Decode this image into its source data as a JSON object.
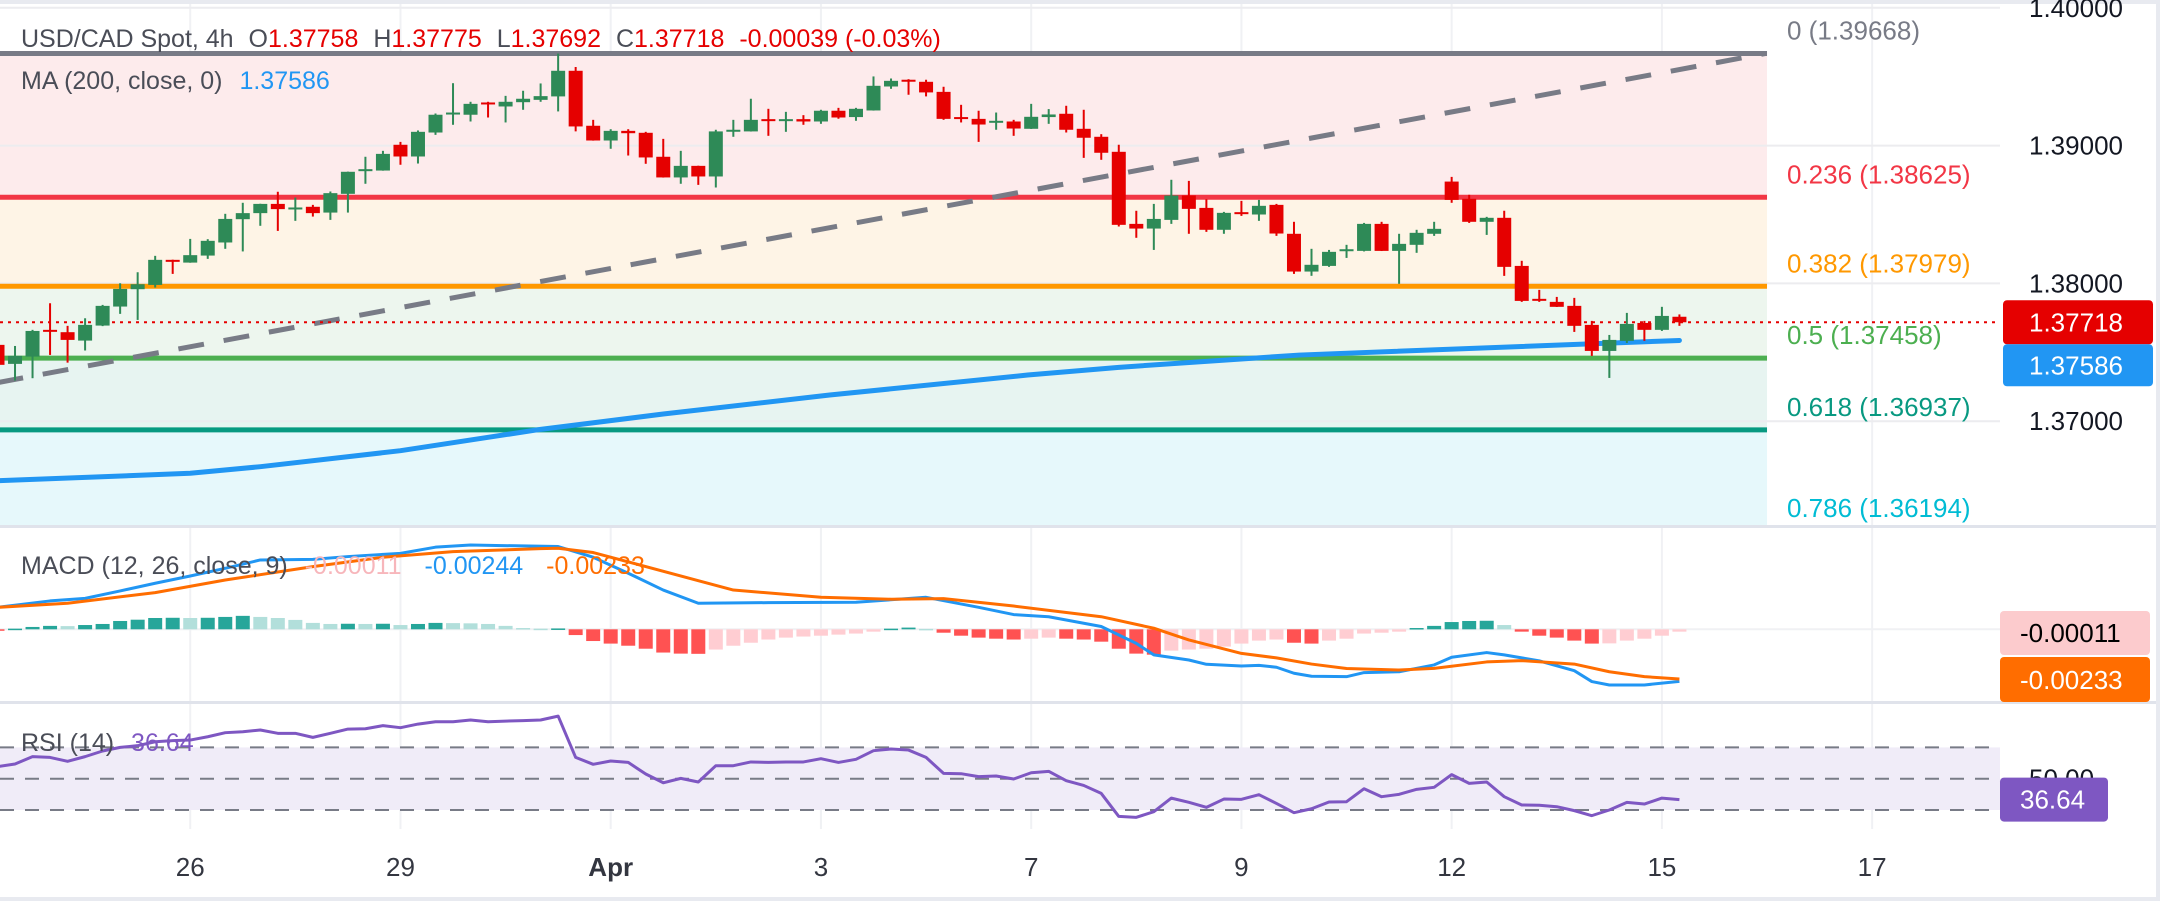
{
  "header": {
    "symbol": "USD/CAD Spot, 4h",
    "open_label": "O",
    "open": "1.37758",
    "high_label": "H",
    "high": "1.37775",
    "low_label": "L",
    "low": "1.37692",
    "close_label": "C",
    "close": "1.37718",
    "change": "-0.00039 (-0.03%)",
    "value_color": "#e50000"
  },
  "ma_legend": {
    "label": "MA (200, close, 0)",
    "value": "1.37586",
    "color": "#2196f3"
  },
  "macd_legend": {
    "label": "MACD (12, 26, close, 9)",
    "hist_value": "-0.00011",
    "macd_value": "-0.00244",
    "signal_value": "-0.00233"
  },
  "rsi_legend": {
    "label": "RSI (14)",
    "value": "36.64"
  },
  "price_axis": {
    "ticks": [
      {
        "price": 1.4,
        "label": "1.40000"
      },
      {
        "price": 1.39,
        "label": "1.39000"
      },
      {
        "price": 1.38,
        "label": "1.38000"
      },
      {
        "price": 1.37,
        "label": "1.37000"
      }
    ],
    "current_price_badge": "1.37718",
    "ma_badge": "1.37586",
    "macd_hist_badge": "-0.00011",
    "macd_signal_badge": "-0.00233",
    "rsi_level_label": "50.00",
    "rsi_badge": "36.64"
  },
  "chart_data": {
    "type": "candlestick",
    "title": "USD/CAD Spot, 4h",
    "colors": {
      "up": "#2e8a57",
      "down": "#e50000",
      "ma": "#2196f3",
      "macd": "#2196f3",
      "signal": "#ff6d00",
      "rsi": "#7e57c2",
      "trendline": "#787b86",
      "hist_up_strong": "#26a69a",
      "hist_up_weak": "#b2dfdb",
      "hist_down_strong": "#ff5252",
      "hist_down_weak": "#ffcdd2"
    },
    "x_axis": {
      "unit": "4h bar",
      "labels": [
        {
          "label": "26",
          "bar": 11
        },
        {
          "label": "29",
          "bar": 23
        },
        {
          "label": "Apr",
          "bar": 35,
          "bold": true
        },
        {
          "label": "3",
          "bar": 47
        },
        {
          "label": "7",
          "bar": 59
        },
        {
          "label": "9",
          "bar": 71
        },
        {
          "label": "12",
          "bar": 83
        },
        {
          "label": "15",
          "bar": 95
        },
        {
          "label": "17",
          "bar": 107
        }
      ]
    },
    "y_range": [
      1.3612,
      1.4006
    ],
    "grid": true,
    "candles_ohlc": [
      [
        1.37554,
        1.3756,
        1.374,
        1.37409
      ],
      [
        1.37416,
        1.37546,
        1.37295,
        1.37474
      ],
      [
        1.37469,
        1.37663,
        1.37312,
        1.37655
      ],
      [
        1.37663,
        1.37856,
        1.37481,
        1.37655
      ],
      [
        1.37646,
        1.37692,
        1.37425,
        1.3759
      ],
      [
        1.37585,
        1.37747,
        1.37513,
        1.37699
      ],
      [
        1.37694,
        1.37844,
        1.3769,
        1.37837
      ],
      [
        1.37832,
        1.38001,
        1.37779,
        1.3796
      ],
      [
        1.37958,
        1.38081,
        1.37735,
        1.37994
      ],
      [
        1.37989,
        1.382,
        1.3797,
        1.38171
      ],
      [
        1.38171,
        1.38172,
        1.38069,
        1.38161
      ],
      [
        1.38151,
        1.38323,
        1.3815,
        1.38205
      ],
      [
        1.38202,
        1.38321,
        1.38178,
        1.38309
      ],
      [
        1.38297,
        1.38505,
        1.38251,
        1.38468
      ],
      [
        1.38466,
        1.38585,
        1.38232,
        1.3851
      ],
      [
        1.3851,
        1.38578,
        1.38418,
        1.38577
      ],
      [
        1.38577,
        1.38665,
        1.38381,
        1.38539
      ],
      [
        1.38543,
        1.38623,
        1.38454,
        1.38551
      ],
      [
        1.38556,
        1.3857,
        1.38485,
        1.3851
      ],
      [
        1.38514,
        1.38667,
        1.38461,
        1.38655
      ],
      [
        1.3865,
        1.38811,
        1.38514,
        1.3881
      ],
      [
        1.38824,
        1.38919,
        1.38723,
        1.38829
      ],
      [
        1.38819,
        1.38962,
        1.38818,
        1.3894
      ],
      [
        1.39006,
        1.39027,
        1.38861,
        1.38921
      ],
      [
        1.38921,
        1.3911,
        1.3887,
        1.391
      ],
      [
        1.39095,
        1.39233,
        1.39078,
        1.39224
      ],
      [
        1.39231,
        1.39453,
        1.39151,
        1.3924
      ],
      [
        1.39224,
        1.39318,
        1.39175,
        1.39303
      ],
      [
        1.39313,
        1.39318,
        1.39204,
        1.39301
      ],
      [
        1.39284,
        1.39361,
        1.39168,
        1.39318
      ],
      [
        1.39315,
        1.39398,
        1.3926,
        1.3934
      ],
      [
        1.39332,
        1.39451,
        1.39318,
        1.39359
      ],
      [
        1.39357,
        1.39668,
        1.39248,
        1.39543
      ],
      [
        1.39543,
        1.3957,
        1.39103,
        1.39139
      ],
      [
        1.39144,
        1.39187,
        1.39036,
        1.39037
      ],
      [
        1.39037,
        1.39119,
        1.38977,
        1.39107
      ],
      [
        1.39107,
        1.39119,
        1.38928,
        1.3909
      ],
      [
        1.39093,
        1.391,
        1.38868,
        1.38914
      ],
      [
        1.38919,
        1.39049,
        1.38768,
        1.38769
      ],
      [
        1.38769,
        1.38962,
        1.38723,
        1.38853
      ],
      [
        1.38853,
        1.38854,
        1.38715,
        1.38776
      ],
      [
        1.38776,
        1.39115,
        1.38696,
        1.39103
      ],
      [
        1.39107,
        1.39187,
        1.39064,
        1.39115
      ],
      [
        1.39103,
        1.3934,
        1.39102,
        1.39187
      ],
      [
        1.39192,
        1.39267,
        1.39071,
        1.39182
      ],
      [
        1.39185,
        1.39245,
        1.391,
        1.39192
      ],
      [
        1.39192,
        1.39221,
        1.39151,
        1.39175
      ],
      [
        1.39175,
        1.3926,
        1.39158,
        1.39253
      ],
      [
        1.39253,
        1.39274,
        1.39195,
        1.39204
      ],
      [
        1.39207,
        1.39274,
        1.3918,
        1.39267
      ],
      [
        1.39255,
        1.39502,
        1.39254,
        1.39434
      ],
      [
        1.39429,
        1.39487,
        1.39412,
        1.3947
      ],
      [
        1.39478,
        1.39482,
        1.39369,
        1.3947
      ],
      [
        1.39463,
        1.39478,
        1.39357,
        1.39386
      ],
      [
        1.3939,
        1.39427,
        1.39187,
        1.39194
      ],
      [
        1.39207,
        1.39296,
        1.39168,
        1.39199
      ],
      [
        1.39194,
        1.39253,
        1.39027,
        1.39153
      ],
      [
        1.39173,
        1.3924,
        1.39115,
        1.3918
      ],
      [
        1.39175,
        1.39187,
        1.39071,
        1.39124
      ],
      [
        1.39122,
        1.39303,
        1.39121,
        1.39209
      ],
      [
        1.39207,
        1.39265,
        1.39158,
        1.39226
      ],
      [
        1.39231,
        1.39289,
        1.39095,
        1.39115
      ],
      [
        1.39122,
        1.3926,
        1.38911,
        1.39057
      ],
      [
        1.39064,
        1.39083,
        1.38897,
        1.38948
      ],
      [
        1.38955,
        1.39006,
        1.38413,
        1.38425
      ],
      [
        1.38432,
        1.38527,
        1.38331,
        1.38398
      ],
      [
        1.38398,
        1.38577,
        1.38243,
        1.38468
      ],
      [
        1.38461,
        1.38752,
        1.38432,
        1.38638
      ],
      [
        1.38638,
        1.38744,
        1.3836,
        1.38541
      ],
      [
        1.38548,
        1.38611,
        1.38374,
        1.38389
      ],
      [
        1.38389,
        1.38519,
        1.3836,
        1.38512
      ],
      [
        1.38517,
        1.38599,
        1.3849,
        1.38507
      ],
      [
        1.385,
        1.38606,
        1.38454,
        1.38563
      ],
      [
        1.3857,
        1.38577,
        1.38345,
        1.38362
      ],
      [
        1.3836,
        1.38447,
        1.38069,
        1.38086
      ],
      [
        1.38086,
        1.38251,
        1.38055,
        1.38135
      ],
      [
        1.38127,
        1.38243,
        1.3812,
        1.38229
      ],
      [
        1.38241,
        1.3828,
        1.38185,
        1.38248
      ],
      [
        1.38236,
        1.38439,
        1.38232,
        1.38432
      ],
      [
        1.38432,
        1.38447,
        1.38235,
        1.38236
      ],
      [
        1.38236,
        1.3836,
        1.37997,
        1.38287
      ],
      [
        1.3828,
        1.38389,
        1.38222,
        1.38367
      ],
      [
        1.3836,
        1.38447,
        1.38345,
        1.38396
      ],
      [
        1.38739,
        1.38773,
        1.38585,
        1.38606
      ],
      [
        1.38614,
        1.38643,
        1.38439,
        1.38447
      ],
      [
        1.38447,
        1.38483,
        1.38352,
        1.38476
      ],
      [
        1.38476,
        1.38527,
        1.38055,
        1.3812
      ],
      [
        1.38127,
        1.38164,
        1.37866,
        1.37873
      ],
      [
        1.37888,
        1.37953,
        1.37866,
        1.37876
      ],
      [
        1.37866,
        1.37902,
        1.37829,
        1.3783
      ],
      [
        1.37837,
        1.37895,
        1.37648,
        1.37692
      ],
      [
        1.37699,
        1.37728,
        1.37474,
        1.3751
      ],
      [
        1.3751,
        1.37626,
        1.37314,
        1.3759
      ],
      [
        1.37583,
        1.37786,
        1.37568,
        1.37706
      ],
      [
        1.37713,
        1.37728,
        1.37583,
        1.37663
      ],
      [
        1.37663,
        1.3783,
        1.37655,
        1.37764
      ],
      [
        1.37758,
        1.37775,
        1.37692,
        1.37718
      ]
    ],
    "current_price": 1.37718,
    "ma_200_points": [
      [
        0,
        1.36568
      ],
      [
        11,
        1.36622
      ],
      [
        15,
        1.3667
      ],
      [
        23,
        1.36786
      ],
      [
        31,
        1.36941
      ],
      [
        38,
        1.37052
      ],
      [
        47.5,
        1.3719
      ],
      [
        58.8,
        1.37335
      ],
      [
        64,
        1.37391
      ],
      [
        74.3,
        1.3748
      ],
      [
        96,
        1.37586
      ]
    ],
    "fibonacci": {
      "end_bar": 101,
      "levels": [
        {
          "ratio": 0,
          "price": 1.39668,
          "label": "0 (1.39668)",
          "color": "#787b86",
          "fill": "#fdebec"
        },
        {
          "ratio": 0.236,
          "price": 1.38625,
          "label": "0.236 (1.38625)",
          "color": "#f23645",
          "fill": "#fef4e6"
        },
        {
          "ratio": 0.382,
          "price": 1.37979,
          "label": "0.382 (1.37979)",
          "color": "#ff9800",
          "fill": "#edf6ee"
        },
        {
          "ratio": 0.5,
          "price": 1.37458,
          "label": "0.5 (1.37458)",
          "color": "#4caf50",
          "fill": "#e7f4f1"
        },
        {
          "ratio": 0.618,
          "price": 1.36937,
          "label": "0.618 (1.36937)",
          "color": "#089981",
          "fill": "#e6f8fb"
        },
        {
          "ratio": 0.786,
          "price": 1.36194,
          "label": "0.786 (1.36194)",
          "color": "#00bcd4",
          "fill": null
        }
      ]
    },
    "trendline": {
      "from": [
        0,
        1.3728
      ],
      "to": [
        100.9,
        1.39668
      ],
      "style": "dashed"
    },
    "macd": {
      "zero": 0,
      "histogram": [
        -1e-05,
        3e-05,
        0.00011,
        0.00016,
        0.00015,
        0.0002,
        0.00025,
        0.00039,
        0.00045,
        0.00053,
        0.00054,
        0.00053,
        0.00054,
        0.00058,
        0.00063,
        0.00058,
        0.00053,
        0.00044,
        0.0003,
        0.00025,
        0.00026,
        0.00025,
        0.00026,
        0.0002,
        0.00025,
        0.0003,
        0.00029,
        0.00028,
        0.00025,
        0.00016,
        6e-05,
        3e-05,
        4e-05,
        -0.00027,
        -0.00055,
        -0.00067,
        -0.00077,
        -0.00091,
        -0.00109,
        -0.00114,
        -0.00115,
        -0.00095,
        -0.00077,
        -0.00063,
        -0.00048,
        -0.00039,
        -0.00034,
        -0.0003,
        -0.00025,
        -0.0002,
        -0.00011,
        3e-05,
        8e-05,
        2e-05,
        -0.00016,
        -0.0003,
        -0.00039,
        -0.00044,
        -0.00048,
        -0.00044,
        -0.00039,
        -0.00044,
        -0.00048,
        -0.00058,
        -0.00091,
        -0.00114,
        -0.00119,
        -0.001,
        -0.00095,
        -0.00091,
        -0.00081,
        -0.00067,
        -0.00053,
        -0.00048,
        -0.00063,
        -0.00067,
        -0.00053,
        -0.00044,
        -0.0002,
        -0.00016,
        -0.00011,
        6e-05,
        0.00016,
        0.00034,
        0.00039,
        0.0004,
        0.0002,
        -0.00011,
        -0.0003,
        -0.00039,
        -0.00053,
        -0.00067,
        -0.00066,
        -0.00053,
        -0.00044,
        -0.0003,
        -0.00011
      ],
      "macd_points": [
        [
          0,
          0.00103
        ],
        [
          3,
          0.00133
        ],
        [
          5,
          0.00145
        ],
        [
          7,
          0.0018
        ],
        [
          9,
          0.00216
        ],
        [
          11,
          0.0025
        ],
        [
          13,
          0.00286
        ],
        [
          15,
          0.00325
        ],
        [
          18,
          0.00328
        ],
        [
          20,
          0.00341
        ],
        [
          23,
          0.00356
        ],
        [
          25,
          0.00385
        ],
        [
          27,
          0.00395
        ],
        [
          32,
          0.00388
        ],
        [
          34,
          0.00338
        ],
        [
          36,
          0.00263
        ],
        [
          38,
          0.00184
        ],
        [
          40,
          0.00122
        ],
        [
          44,
          0.00125
        ],
        [
          49,
          0.00127
        ],
        [
          53,
          0.0015
        ],
        [
          56,
          0.00103
        ],
        [
          58,
          0.00069
        ],
        [
          60,
          0.00059
        ],
        [
          63,
          0.00013
        ],
        [
          65,
          -0.00066
        ],
        [
          66,
          -0.0012
        ],
        [
          68,
          -0.00144
        ],
        [
          69,
          -0.00164
        ],
        [
          71,
          -0.00172
        ],
        [
          72,
          -0.00169
        ],
        [
          73,
          -0.00178
        ],
        [
          74,
          -0.00206
        ],
        [
          75,
          -0.0022
        ],
        [
          77,
          -0.00222
        ],
        [
          78,
          -0.00203
        ],
        [
          80,
          -0.00199
        ],
        [
          82,
          -0.00167
        ],
        [
          83,
          -0.00131
        ],
        [
          85,
          -0.00109
        ],
        [
          86,
          -0.0012
        ],
        [
          88,
          -0.00148
        ],
        [
          90,
          -0.00194
        ],
        [
          91,
          -0.00245
        ],
        [
          92,
          -0.00261
        ],
        [
          94,
          -0.00261
        ],
        [
          96,
          -0.00244
        ]
      ],
      "signal_points": [
        [
          0,
          0.00103
        ],
        [
          4,
          0.00122
        ],
        [
          9,
          0.00172
        ],
        [
          13,
          0.00231
        ],
        [
          18,
          0.00294
        ],
        [
          22,
          0.00338
        ],
        [
          26,
          0.00364
        ],
        [
          31,
          0.00378
        ],
        [
          32,
          0.0038
        ],
        [
          34,
          0.0036
        ],
        [
          40,
          0.00228
        ],
        [
          42,
          0.00184
        ],
        [
          47,
          0.0015
        ],
        [
          51,
          0.00141
        ],
        [
          54,
          0.00144
        ],
        [
          58,
          0.00109
        ],
        [
          63,
          0.00059
        ],
        [
          66,
          5e-05
        ],
        [
          68,
          -0.0005
        ],
        [
          71,
          -0.00113
        ],
        [
          73,
          -0.00134
        ],
        [
          75,
          -0.00163
        ],
        [
          77,
          -0.00184
        ],
        [
          80,
          -0.00191
        ],
        [
          82,
          -0.00183
        ],
        [
          85,
          -0.00153
        ],
        [
          87,
          -0.00147
        ],
        [
          90,
          -0.00163
        ],
        [
          92,
          -0.00199
        ],
        [
          94,
          -0.00222
        ],
        [
          96,
          -0.00233
        ]
      ]
    },
    "rsi": {
      "upper": 70,
      "middle": 50,
      "lower": 30,
      "values": [
        57.7,
        59.4,
        64.1,
        63.6,
        61.1,
        64.1,
        67.7,
        70.0,
        71.1,
        73.6,
        74.3,
        74.7,
        76.8,
        79.4,
        80.0,
        81.1,
        79.0,
        79.0,
        76.4,
        79.0,
        81.7,
        81.9,
        83.9,
        82.6,
        84.9,
        86.4,
        86.4,
        87.5,
        86.4,
        86.8,
        87.1,
        87.5,
        90.0,
        63.6,
        59.2,
        61.3,
        60.4,
        53.0,
        47.4,
        50.2,
        47.9,
        58.3,
        58.3,
        60.7,
        60.4,
        60.7,
        60.7,
        62.8,
        60.4,
        62.4,
        67.9,
        69.0,
        68.3,
        63.6,
        53.4,
        53.2,
        51.3,
        51.7,
        49.8,
        53.8,
        54.7,
        48.7,
        45.7,
        40.6,
        25.9,
        25.3,
        28.9,
        37.6,
        34.9,
        31.7,
        37.0,
        36.8,
        39.8,
        34.2,
        28.3,
        30.8,
        35.1,
        35.3,
        43.6,
        38.5,
        40.0,
        43.2,
        44.5,
        52.6,
        47.0,
        47.9,
        38.5,
        33.2,
        33.0,
        32.1,
        29.6,
        26.4,
        30.0,
        34.9,
        33.8,
        37.6,
        36.64
      ]
    }
  }
}
